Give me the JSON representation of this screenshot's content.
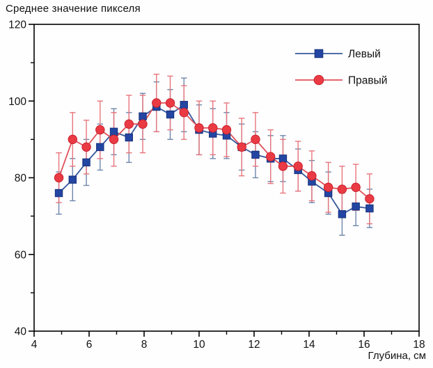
{
  "title": "Среднее значение пикселя",
  "xlabel": "Глубина, см",
  "chart_data": {
    "type": "line",
    "title": "Среднее значение пикселя",
    "xlabel": "Глубина, см",
    "ylabel": "",
    "xlim": [
      4,
      18
    ],
    "ylim": [
      40,
      120
    ],
    "x_major_ticks": [
      4,
      6,
      8,
      10,
      12,
      14,
      16,
      18
    ],
    "x_minor_ticks": [
      5,
      7,
      9,
      11,
      13,
      15,
      17
    ],
    "y_major_ticks": [
      40,
      60,
      80,
      100,
      120
    ],
    "y_minor_ticks": [
      50,
      70,
      90,
      110
    ],
    "grid": false,
    "legend_position": "top-right-inside",
    "x": [
      4.9,
      5.4,
      5.9,
      6.4,
      6.9,
      7.45,
      7.95,
      8.45,
      8.95,
      9.45,
      10.0,
      10.5,
      11.0,
      11.55,
      12.05,
      12.6,
      13.05,
      13.6,
      14.1,
      14.7,
      15.2,
      15.7,
      16.2
    ],
    "series": [
      {
        "name": "Левый",
        "marker": "square",
        "marker_color": "#2346a2",
        "line_color": "#35589e",
        "errorbar_color": "#6e86ac",
        "values": [
          76,
          79.5,
          84,
          88,
          92,
          90.5,
          96,
          98.5,
          96.5,
          99,
          92.5,
          91.5,
          91,
          88,
          86,
          85,
          85,
          82,
          79,
          76,
          70.5,
          72.5,
          72
        ],
        "errors": [
          5.5,
          5.5,
          6,
          6,
          6,
          6.5,
          6,
          6.5,
          6.5,
          7,
          6.5,
          6.5,
          6,
          6,
          6,
          6,
          6,
          5.5,
          5.5,
          5.5,
          5.5,
          5,
          5
        ]
      },
      {
        "name": "Правый",
        "marker": "circle",
        "marker_color": "#ea3b45",
        "line_color": "#e04f58",
        "errorbar_color": "#e8757c",
        "values": [
          80,
          90,
          88,
          92.5,
          90,
          94,
          94,
          99.5,
          99.5,
          97,
          93,
          93,
          92.5,
          88,
          90,
          85.5,
          83,
          83,
          80.5,
          77.5,
          77,
          77.5,
          74.5
        ],
        "errors": [
          6.5,
          7,
          7,
          7.5,
          7,
          7.5,
          7.5,
          7.5,
          7,
          7,
          7,
          7,
          7,
          7.5,
          7,
          7,
          7,
          6.5,
          6.5,
          6.5,
          6,
          6,
          6.5
        ]
      }
    ]
  }
}
